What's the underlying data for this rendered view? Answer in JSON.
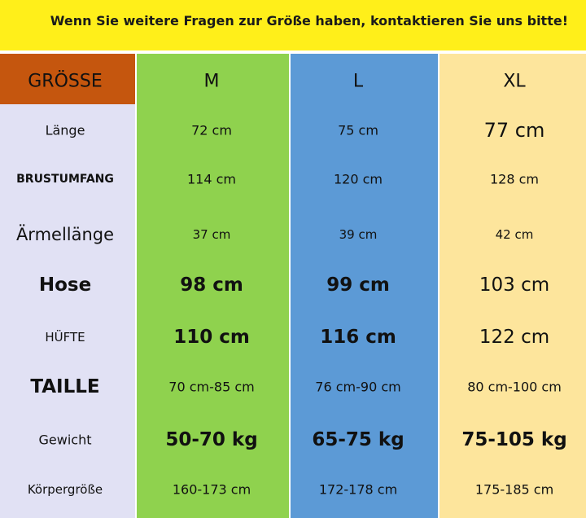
{
  "header": {
    "title": "Wenn Sie weitere Fragen zur Größe haben, kontaktieren Sie uns bitte!"
  },
  "table": {
    "columns": [
      "GRÖSSE",
      "M",
      "L",
      "XL"
    ],
    "rows": [
      [
        "Länge",
        "72 cm",
        "75 cm",
        "77 cm"
      ],
      [
        "BRUSTUMFANG",
        "114 cm",
        "120 cm",
        "128 cm"
      ],
      [
        "Ärmellänge",
        "37 cm",
        "39 cm",
        "42 cm"
      ],
      [
        "Hose",
        "98 cm",
        "99 cm",
        "103 cm"
      ],
      [
        "HÜFTE",
        "110 cm",
        "116 cm",
        "122 cm"
      ],
      [
        "TAILLE",
        "70 cm-85 cm",
        "76 cm-90 cm",
        "80 cm-100 cm"
      ],
      [
        "Gewicht",
        "50-70 kg",
        "65-75 kg",
        "75-105 kg"
      ],
      [
        "Körpergröße",
        "160-173 cm",
        "172-178 cm",
        "175-185 cm"
      ]
    ]
  }
}
